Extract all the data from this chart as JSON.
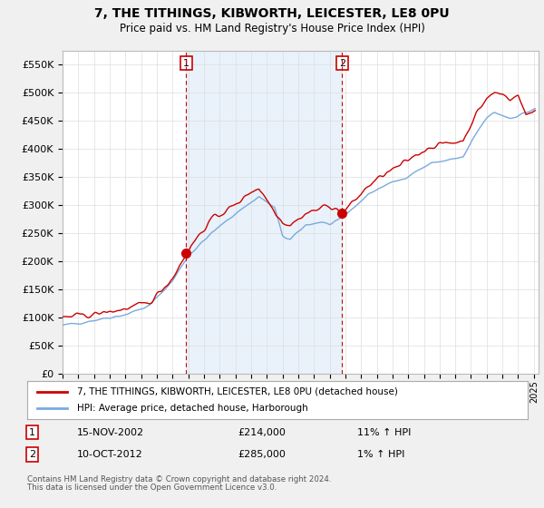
{
  "title": "7, THE TITHINGS, KIBWORTH, LEICESTER, LE8 0PU",
  "subtitle": "Price paid vs. HM Land Registry's House Price Index (HPI)",
  "background_color": "#f0f0f0",
  "plot_bg_color": "#ffffff",
  "ylabel_ticks": [
    "£0",
    "£50K",
    "£100K",
    "£150K",
    "£200K",
    "£250K",
    "£300K",
    "£350K",
    "£400K",
    "£450K",
    "£500K",
    "£550K"
  ],
  "ytick_values": [
    0,
    50000,
    100000,
    150000,
    200000,
    250000,
    300000,
    350000,
    400000,
    450000,
    500000,
    550000
  ],
  "ylim": [
    0,
    575000
  ],
  "legend_line1": "7, THE TITHINGS, KIBWORTH, LEICESTER, LE8 0PU (detached house)",
  "legend_line2": "HPI: Average price, detached house, Harborough",
  "annotation1_label": "1",
  "annotation1_date": "15-NOV-2002",
  "annotation1_price": "£214,000",
  "annotation1_hpi": "11% ↑ HPI",
  "annotation2_label": "2",
  "annotation2_date": "10-OCT-2012",
  "annotation2_price": "£285,000",
  "annotation2_hpi": "1% ↑ HPI",
  "footer1": "Contains HM Land Registry data © Crown copyright and database right 2024.",
  "footer2": "This data is licensed under the Open Government Licence v3.0.",
  "red_color": "#cc0000",
  "blue_color": "#7aaadd",
  "vline_color": "#cc0000",
  "dot_color": "#cc0000",
  "shade_color": "#ddeeff",
  "grid_color": "#dddddd"
}
